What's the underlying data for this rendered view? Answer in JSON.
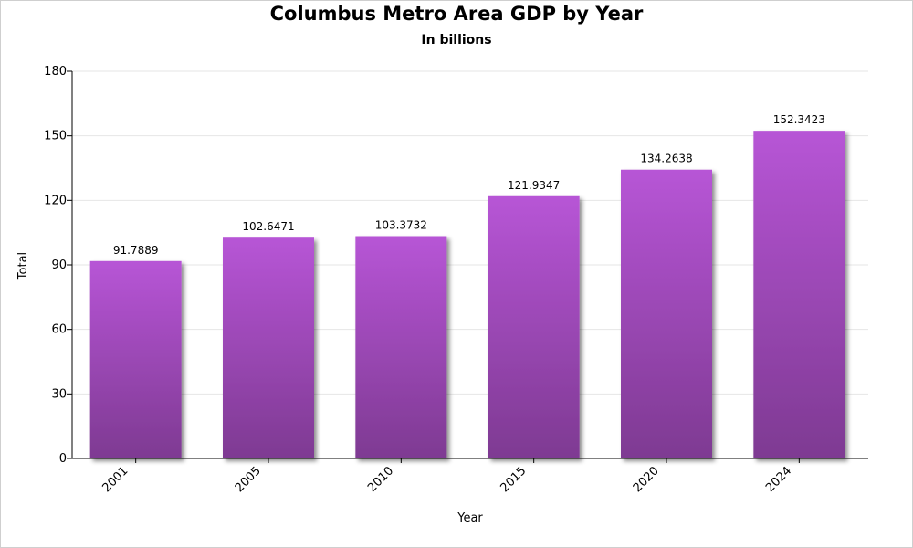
{
  "chart_data": {
    "type": "bar",
    "title": "Columbus Metro Area GDP by Year",
    "subtitle": "In billions",
    "xlabel": "Year",
    "ylabel": "Total",
    "categories": [
      "2001",
      "2005",
      "2010",
      "2015",
      "2020",
      "2024"
    ],
    "values": [
      91.7889,
      102.6471,
      103.3732,
      121.9347,
      134.2638,
      152.3423
    ],
    "value_labels": [
      "91.7889",
      "102.6471",
      "103.3732",
      "121.9347",
      "134.2638",
      "152.3423"
    ],
    "ylim": [
      0,
      180
    ],
    "yticks": [
      0,
      30,
      60,
      90,
      120,
      150,
      180
    ],
    "ytick_labels": [
      "0",
      "30",
      "60",
      "90",
      "120",
      "150",
      "180"
    ],
    "grid": true,
    "legend": "none",
    "bar_color_top": "#b755d6",
    "bar_color_bottom": "#7e3a92",
    "grid_color": "#e6e6e6"
  }
}
